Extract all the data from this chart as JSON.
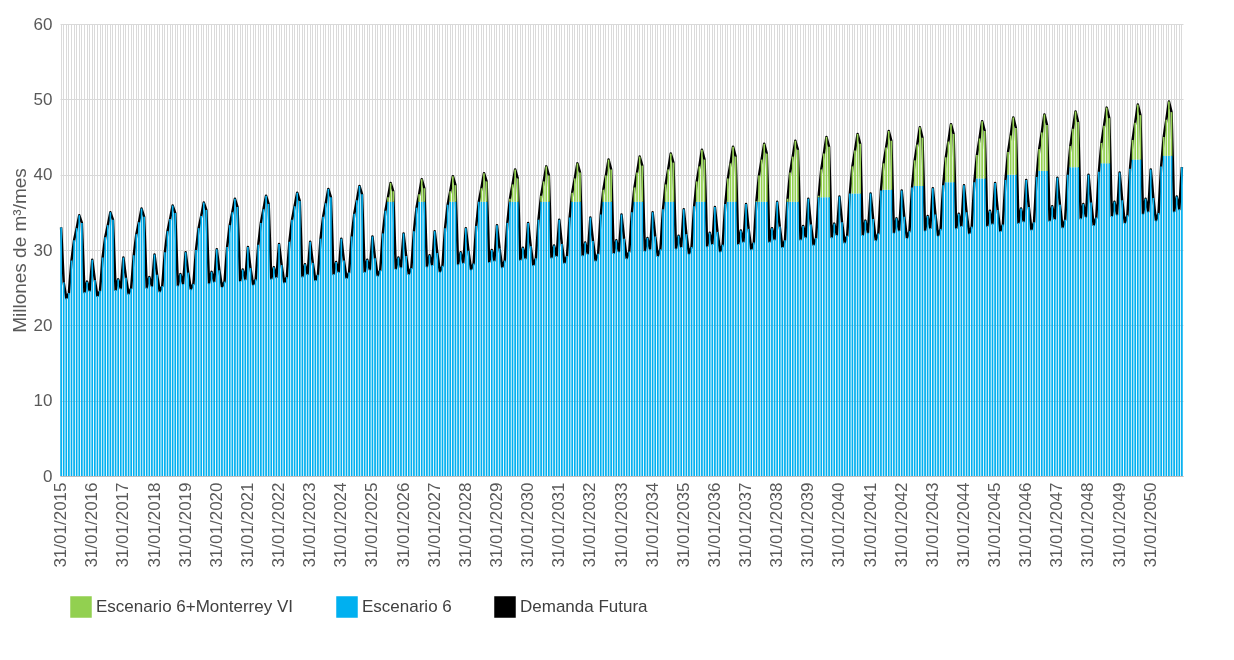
{
  "chart_data": {
    "type": "bar",
    "stacked": true,
    "ylabel": "Millones de m³/mes",
    "ylim": [
      0,
      60
    ],
    "yticks": [
      0,
      10,
      20,
      30,
      40,
      50,
      60
    ],
    "grid": true,
    "legend": "bottom",
    "line_style": "solid",
    "categories": [
      "31/01/2015",
      null,
      null,
      null,
      null,
      null,
      null,
      null,
      null,
      null,
      null,
      null,
      "31/01/2016",
      null,
      null,
      null,
      null,
      null,
      null,
      null,
      null,
      null,
      null,
      null,
      "31/01/2017",
      null,
      null,
      null,
      null,
      null,
      null,
      null,
      null,
      null,
      null,
      null,
      "31/01/2018",
      null,
      null,
      null,
      null,
      null,
      null,
      null,
      null,
      null,
      null,
      null,
      "31/01/2019",
      null,
      null,
      null,
      null,
      null,
      null,
      null,
      null,
      null,
      null,
      null,
      "31/01/2020",
      null,
      null,
      null,
      null,
      null,
      null,
      null,
      null,
      null,
      null,
      null,
      "31/01/2021",
      null,
      null,
      null,
      null,
      null,
      null,
      null,
      null,
      null,
      null,
      null,
      "31/01/2022",
      null,
      null,
      null,
      null,
      null,
      null,
      null,
      null,
      null,
      null,
      null,
      "31/01/2023",
      null,
      null,
      null,
      null,
      null,
      null,
      null,
      null,
      null,
      null,
      null,
      "31/01/2024",
      null,
      null,
      null,
      null,
      null,
      null,
      null,
      null,
      null,
      null,
      null,
      "31/01/2025",
      null,
      null,
      null,
      null,
      null,
      null,
      null,
      null,
      null,
      null,
      null,
      "31/01/2026",
      null,
      null,
      null,
      null,
      null,
      null,
      null,
      null,
      null,
      null,
      null,
      "31/01/2027",
      null,
      null,
      null,
      null,
      null,
      null,
      null,
      null,
      null,
      null,
      null,
      "31/01/2028",
      null,
      null,
      null,
      null,
      null,
      null,
      null,
      null,
      null,
      null,
      null,
      "31/01/2029",
      null,
      null,
      null,
      null,
      null,
      null,
      null,
      null,
      null,
      null,
      null,
      "31/01/2030",
      null,
      null,
      null,
      null,
      null,
      null,
      null,
      null,
      null,
      null,
      null,
      "31/01/2031",
      null,
      null,
      null,
      null,
      null,
      null,
      null,
      null,
      null,
      null,
      null,
      "31/01/2032",
      null,
      null,
      null,
      null,
      null,
      null,
      null,
      null,
      null,
      null,
      null,
      "31/01/2033",
      null,
      null,
      null,
      null,
      null,
      null,
      null,
      null,
      null,
      null,
      null,
      "31/01/2034",
      null,
      null,
      null,
      null,
      null,
      null,
      null,
      null,
      null,
      null,
      null,
      "31/01/2035",
      null,
      null,
      null,
      null,
      null,
      null,
      null,
      null,
      null,
      null,
      null,
      "31/01/2036",
      null,
      null,
      null,
      null,
      null,
      null,
      null,
      null,
      null,
      null,
      null,
      "31/01/2037",
      null,
      null,
      null,
      null,
      null,
      null,
      null,
      null,
      null,
      null,
      null,
      "31/01/2038",
      null,
      null,
      null,
      null,
      null,
      null,
      null,
      null,
      null,
      null,
      null,
      "31/01/2039",
      null,
      null,
      null,
      null,
      null,
      null,
      null,
      null,
      null,
      null,
      null,
      "31/01/2040",
      null,
      null,
      null,
      null,
      null,
      null,
      null,
      null,
      null,
      null,
      null,
      "31/01/2041",
      null,
      null,
      null,
      null,
      null,
      null,
      null,
      null,
      null,
      null,
      null,
      "31/01/2042",
      null,
      null,
      null,
      null,
      null,
      null,
      null,
      null,
      null,
      null,
      null,
      "31/01/2043",
      null,
      null,
      null,
      null,
      null,
      null,
      null,
      null,
      null,
      null,
      null,
      "31/01/2044",
      null,
      null,
      null,
      null,
      null,
      null,
      null,
      null,
      null,
      null,
      null,
      "31/01/2045",
      null,
      null,
      null,
      null,
      null,
      null,
      null,
      null,
      null,
      null,
      null,
      "31/01/2046",
      null,
      null,
      null,
      null,
      null,
      null,
      null,
      null,
      null,
      null,
      null,
      "31/01/2047",
      null,
      null,
      null,
      null,
      null,
      null,
      null,
      null,
      null,
      null,
      null,
      "31/01/2048",
      null,
      null,
      null,
      null,
      null,
      null,
      null,
      null,
      null,
      null,
      null,
      "31/01/2049",
      null,
      null,
      null,
      null,
      null,
      null,
      null,
      null,
      null,
      null,
      null,
      "31/01/2050",
      null,
      null,
      null,
      null,
      null,
      null,
      null,
      null,
      null,
      null,
      null,
      null
    ],
    "series": [
      {
        "name": "Escenario 6",
        "color": "#00b0f0",
        "values": [
          33.0,
          25.7,
          23.6,
          24.3,
          28.6,
          31.3,
          32.9,
          34.6,
          33.6,
          24.4,
          25.8,
          24.6,
          28.7,
          26.0,
          23.9,
          24.6,
          29.0,
          31.7,
          33.3,
          35.0,
          34.0,
          24.7,
          26.1,
          24.9,
          29.0,
          26.3,
          24.2,
          24.9,
          29.3,
          32.1,
          33.7,
          35.5,
          34.4,
          25.0,
          26.4,
          25.2,
          29.4,
          26.7,
          24.5,
          25.2,
          29.7,
          32.5,
          34.1,
          35.9,
          34.9,
          25.3,
          26.8,
          25.5,
          29.7,
          27.0,
          24.8,
          25.5,
          30.0,
          32.9,
          34.5,
          36.3,
          35.3,
          25.6,
          27.1,
          25.8,
          30.1,
          27.3,
          25.1,
          25.8,
          30.4,
          33.3,
          35.0,
          36.8,
          35.7,
          25.9,
          27.4,
          26.1,
          30.4,
          27.6,
          25.4,
          26.1,
          30.7,
          33.6,
          35.4,
          37.2,
          36.1,
          26.2,
          27.7,
          26.4,
          30.8,
          28.0,
          25.7,
          26.4,
          31.1,
          34.0,
          35.8,
          37.6,
          36.5,
          26.5,
          28.1,
          26.8,
          31.1,
          28.3,
          26.0,
          26.7,
          31.5,
          34.4,
          36.2,
          38.1,
          37.0,
          26.8,
          28.4,
          27.1,
          31.5,
          28.6,
          26.3,
          27.0,
          31.8,
          34.8,
          36.6,
          38.5,
          37.4,
          27.1,
          28.7,
          27.4,
          31.8,
          28.9,
          26.6,
          27.3,
          32.2,
          35.2,
          36.4,
          36.4,
          36.4,
          27.5,
          29.0,
          27.7,
          32.2,
          29.2,
          26.8,
          27.6,
          32.5,
          35.6,
          36.4,
          36.4,
          36.4,
          27.8,
          29.3,
          28.0,
          32.5,
          29.6,
          27.1,
          27.9,
          32.9,
          36.0,
          36.4,
          36.4,
          36.4,
          28.1,
          29.7,
          28.3,
          32.9,
          29.9,
          27.4,
          28.2,
          33.2,
          36.4,
          36.4,
          36.4,
          36.4,
          28.4,
          30.0,
          28.6,
          33.3,
          30.2,
          27.7,
          28.6,
          33.6,
          36.4,
          36.4,
          36.4,
          36.4,
          28.7,
          30.3,
          28.9,
          33.6,
          30.5,
          28.0,
          28.9,
          34.0,
          36.4,
          36.4,
          36.4,
          36.4,
          29.0,
          30.6,
          29.2,
          34.0,
          30.8,
          28.3,
          29.2,
          34.3,
          36.4,
          36.4,
          36.4,
          36.4,
          29.3,
          31.0,
          29.5,
          34.3,
          31.2,
          28.6,
          29.5,
          34.7,
          36.4,
          36.4,
          36.4,
          36.4,
          29.6,
          31.3,
          29.8,
          34.7,
          31.5,
          28.9,
          29.8,
          35.0,
          36.4,
          36.4,
          36.4,
          36.4,
          29.9,
          31.6,
          30.1,
          35.0,
          31.8,
          29.2,
          30.1,
          35.4,
          36.4,
          36.4,
          36.4,
          36.4,
          30.2,
          31.9,
          30.4,
          35.4,
          32.1,
          29.5,
          30.4,
          35.8,
          36.4,
          36.4,
          36.4,
          36.4,
          30.5,
          32.3,
          30.8,
          35.7,
          32.4,
          29.8,
          30.7,
          36.1,
          36.4,
          36.4,
          36.4,
          36.4,
          30.8,
          32.6,
          31.1,
          36.1,
          32.8,
          30.1,
          31.0,
          36.4,
          36.4,
          36.4,
          36.4,
          36.4,
          31.1,
          32.9,
          31.4,
          36.4,
          33.1,
          30.4,
          31.3,
          36.4,
          36.4,
          36.4,
          36.4,
          36.4,
          31.4,
          33.2,
          31.7,
          36.8,
          33.4,
          30.7,
          31.6,
          37.0,
          37.0,
          37.0,
          37.0,
          37.0,
          31.7,
          33.5,
          32.0,
          37.1,
          33.7,
          31.0,
          31.9,
          37.5,
          37.5,
          37.5,
          37.5,
          37.5,
          32.0,
          33.9,
          32.3,
          37.5,
          34.1,
          31.3,
          32.2,
          37.9,
          38.0,
          38.0,
          38.0,
          38.0,
          32.3,
          34.2,
          32.6,
          37.9,
          34.4,
          31.6,
          32.5,
          38.3,
          38.5,
          38.5,
          38.5,
          38.5,
          32.6,
          34.5,
          32.9,
          38.2,
          34.7,
          31.9,
          32.8,
          38.6,
          39.0,
          39.0,
          39.0,
          39.0,
          32.9,
          34.8,
          33.2,
          38.6,
          35.0,
          32.2,
          33.1,
          39.0,
          39.5,
          39.5,
          39.5,
          39.5,
          33.2,
          35.2,
          33.5,
          38.9,
          35.3,
          32.5,
          33.4,
          39.3,
          40.0,
          40.0,
          40.0,
          40.0,
          33.6,
          35.5,
          33.8,
          39.3,
          35.7,
          32.7,
          33.7,
          39.7,
          40.5,
          40.5,
          40.5,
          40.5,
          33.9,
          35.8,
          34.1,
          39.6,
          36.0,
          33.0,
          34.0,
          40.0,
          41.0,
          41.0,
          41.0,
          41.0,
          34.2,
          36.1,
          34.4,
          40.0,
          36.3,
          33.3,
          34.3,
          40.4,
          41.5,
          41.5,
          41.5,
          41.5,
          34.5,
          36.4,
          34.7,
          40.3,
          36.6,
          33.6,
          34.6,
          40.8,
          42.0,
          42.0,
          42.0,
          42.0,
          34.8,
          36.8,
          35.1,
          40.7,
          36.9,
          33.9,
          34.9,
          41.1,
          42.5,
          42.5,
          42.5,
          42.5,
          35.1,
          37.1,
          35.4,
          41.0
        ]
      },
      {
        "name": "Escenario 6+Monterrey VI",
        "color": "#92d050",
        "values": [
          0,
          0,
          0,
          0,
          0,
          0,
          0,
          0,
          0,
          0,
          0,
          0,
          0,
          0,
          0,
          0,
          0,
          0,
          0,
          0,
          0,
          0,
          0,
          0,
          0,
          0,
          0,
          0,
          0,
          0,
          0,
          0,
          0,
          0,
          0,
          0,
          0,
          0,
          0,
          0,
          0,
          0,
          0,
          0,
          0,
          0,
          0,
          0,
          0,
          0,
          0,
          0,
          0,
          0,
          0,
          0,
          0,
          0,
          0,
          0,
          0,
          0,
          0,
          0,
          0,
          0,
          0,
          0,
          0,
          0,
          0,
          0,
          0,
          0,
          0,
          0,
          0,
          0,
          0,
          0,
          0,
          0,
          0,
          0,
          0,
          0,
          0,
          0,
          0,
          0,
          0,
          0,
          0,
          0,
          0,
          0,
          0,
          0,
          0,
          0,
          0,
          0,
          0,
          0,
          0,
          0,
          0,
          0,
          0,
          0,
          0,
          0,
          0,
          0,
          0,
          0,
          0,
          0,
          0,
          0,
          0,
          0,
          0,
          0,
          0,
          0,
          0.6,
          2.5,
          1.4,
          0,
          0,
          0,
          0,
          0,
          0,
          0,
          0,
          0,
          1.0,
          3.0,
          1.8,
          0,
          0,
          0,
          0,
          0,
          0,
          0,
          0,
          0,
          1.4,
          3.4,
          2.2,
          0,
          0,
          0,
          0,
          0,
          0,
          0,
          0,
          0,
          1.8,
          3.8,
          2.7,
          0,
          0,
          0,
          0,
          0,
          0,
          0,
          0,
          0.4,
          2.3,
          4.3,
          3.1,
          0,
          0,
          0,
          0,
          0,
          0,
          0,
          0,
          0.8,
          2.7,
          4.7,
          3.5,
          0,
          0,
          0,
          0,
          0,
          0,
          0,
          0,
          1.2,
          3.1,
          5.1,
          3.9,
          0,
          0,
          0,
          0,
          0,
          0,
          0,
          0,
          1.6,
          3.5,
          5.6,
          4.3,
          0,
          0,
          0,
          0,
          0,
          0,
          0,
          0,
          1.9,
          3.9,
          6.0,
          4.8,
          0,
          0,
          0,
          0,
          0,
          0,
          0,
          0,
          2.3,
          4.3,
          6.4,
          5.2,
          0,
          0,
          0,
          0,
          0,
          0,
          0,
          0,
          2.7,
          4.7,
          6.9,
          5.6,
          0,
          0,
          0,
          0,
          0,
          0,
          0,
          0,
          3.1,
          5.1,
          7.3,
          6.0,
          0,
          0,
          0,
          0,
          0,
          0,
          0,
          0.1,
          3.5,
          5.6,
          7.7,
          6.4,
          0,
          0,
          0,
          0,
          0,
          0,
          0,
          0.4,
          3.9,
          6.0,
          8.1,
          6.9,
          0,
          0,
          0,
          0,
          0,
          0,
          0,
          0.2,
          3.7,
          5.8,
          8.0,
          6.7,
          0,
          0,
          0,
          0,
          0,
          0,
          0,
          0,
          3.6,
          5.7,
          7.9,
          6.6,
          0,
          0,
          0,
          0,
          0,
          0,
          0,
          0,
          3.5,
          5.6,
          7.8,
          6.5,
          0,
          0,
          0,
          0,
          0,
          0,
          0,
          0,
          3.4,
          5.5,
          7.8,
          6.4,
          0,
          0,
          0,
          0,
          0,
          0,
          0,
          0,
          3.3,
          5.4,
          7.7,
          6.4,
          0,
          0,
          0,
          0,
          0,
          0,
          0,
          0,
          3.1,
          5.3,
          7.6,
          6.3,
          0,
          0,
          0,
          0,
          0,
          0,
          0,
          0,
          3.0,
          5.2,
          7.6,
          6.2,
          0,
          0,
          0,
          0,
          0,
          0,
          0,
          0,
          2.9,
          5.1,
          7.5,
          6.1,
          0,
          0,
          0,
          0,
          0,
          0,
          0,
          0,
          2.8,
          5.1,
          7.4,
          6.0,
          0,
          0,
          0,
          0,
          0,
          0,
          0,
          0,
          2.7,
          5.0,
          7.4,
          6.0,
          0,
          0,
          0,
          0,
          0,
          0,
          0,
          0,
          2.6,
          4.9,
          7.3,
          5.9,
          0,
          0,
          0,
          0,
          0,
          0,
          0,
          0,
          2.5,
          4.8,
          7.2,
          5.8,
          0,
          0,
          0,
          0
        ]
      },
      {
        "name": "Demanda Futura",
        "color": "#000000",
        "type": "line",
        "values": [
          33.0,
          25.7,
          23.6,
          24.3,
          28.6,
          31.3,
          32.9,
          34.6,
          33.6,
          24.4,
          25.8,
          24.6,
          28.7,
          26.0,
          23.9,
          24.6,
          29.0,
          31.7,
          33.3,
          35.0,
          34.0,
          24.7,
          26.1,
          24.9,
          29.0,
          26.3,
          24.2,
          24.9,
          29.3,
          32.1,
          33.7,
          35.5,
          34.4,
          25.0,
          26.4,
          25.2,
          29.4,
          26.7,
          24.5,
          25.2,
          29.7,
          32.5,
          34.1,
          35.9,
          34.9,
          25.3,
          26.8,
          25.5,
          29.7,
          27.0,
          24.8,
          25.5,
          30.0,
          32.9,
          34.5,
          36.3,
          35.3,
          25.6,
          27.1,
          25.8,
          30.1,
          27.3,
          25.1,
          25.8,
          30.4,
          33.3,
          35.0,
          36.8,
          35.7,
          25.9,
          27.4,
          26.1,
          30.4,
          27.6,
          25.4,
          26.1,
          30.7,
          33.6,
          35.4,
          37.2,
          36.1,
          26.2,
          27.7,
          26.4,
          30.8,
          28.0,
          25.7,
          26.4,
          31.1,
          34.0,
          35.8,
          37.6,
          36.5,
          26.5,
          28.1,
          26.8,
          31.1,
          28.3,
          26.0,
          26.7,
          31.5,
          34.4,
          36.2,
          38.1,
          37.0,
          26.8,
          28.4,
          27.1,
          31.5,
          28.6,
          26.3,
          27.0,
          31.8,
          34.8,
          36.6,
          38.5,
          37.4,
          27.1,
          28.7,
          27.4,
          31.8,
          28.9,
          26.6,
          27.3,
          32.2,
          35.2,
          37.0,
          38.9,
          37.8,
          27.5,
          29.0,
          27.7,
          32.2,
          29.2,
          26.8,
          27.6,
          32.5,
          35.6,
          37.4,
          39.4,
          38.2,
          27.8,
          29.3,
          28.0,
          32.5,
          29.6,
          27.1,
          27.9,
          32.9,
          36.0,
          37.8,
          39.8,
          38.6,
          28.1,
          29.7,
          28.3,
          32.9,
          29.9,
          27.4,
          28.2,
          33.2,
          36.4,
          38.2,
          40.2,
          39.1,
          28.4,
          30.0,
          28.6,
          33.3,
          30.2,
          27.7,
          28.6,
          33.6,
          36.8,
          38.7,
          40.7,
          39.5,
          28.7,
          30.3,
          28.9,
          33.6,
          30.5,
          28.0,
          28.9,
          34.0,
          37.2,
          39.1,
          41.1,
          39.9,
          29.0,
          30.6,
          29.2,
          34.0,
          30.8,
          28.3,
          29.2,
          34.3,
          37.6,
          39.5,
          41.5,
          40.3,
          29.3,
          31.0,
          29.5,
          34.3,
          31.2,
          28.6,
          29.5,
          34.7,
          38.0,
          39.9,
          42.0,
          40.7,
          29.6,
          31.3,
          29.8,
          34.7,
          31.5,
          28.9,
          29.8,
          35.0,
          38.3,
          40.3,
          42.4,
          41.2,
          29.9,
          31.6,
          30.1,
          35.0,
          31.8,
          29.2,
          30.1,
          35.4,
          38.7,
          40.7,
          42.8,
          41.6,
          30.2,
          31.9,
          30.4,
          35.4,
          32.1,
          29.5,
          30.4,
          35.8,
          39.1,
          41.1,
          43.3,
          42.0,
          30.5,
          32.3,
          30.8,
          35.7,
          32.4,
          29.8,
          30.7,
          36.1,
          39.5,
          41.5,
          43.7,
          42.4,
          30.8,
          32.6,
          31.1,
          36.1,
          32.8,
          30.1,
          31.0,
          36.5,
          39.9,
          42.0,
          44.1,
          42.8,
          31.1,
          32.9,
          31.4,
          36.4,
          33.1,
          30.4,
          31.3,
          36.8,
          40.3,
          42.4,
          44.5,
          43.3,
          31.4,
          33.2,
          31.7,
          36.8,
          33.4,
          30.7,
          31.6,
          37.2,
          40.7,
          42.8,
          45.0,
          43.7,
          31.7,
          33.5,
          32.0,
          37.1,
          33.7,
          31.0,
          31.9,
          37.5,
          41.1,
          43.2,
          45.4,
          44.1,
          32.0,
          33.9,
          32.3,
          37.5,
          34.1,
          31.3,
          32.2,
          37.9,
          41.5,
          43.6,
          45.8,
          44.5,
          32.3,
          34.2,
          32.6,
          37.9,
          34.4,
          31.6,
          32.5,
          38.3,
          41.9,
          44.0,
          46.3,
          44.9,
          32.6,
          34.5,
          32.9,
          38.2,
          34.7,
          31.9,
          32.8,
          38.6,
          42.3,
          44.4,
          46.7,
          45.4,
          32.9,
          34.8,
          33.2,
          38.6,
          35.0,
          32.2,
          33.1,
          39.0,
          42.6,
          44.8,
          47.1,
          45.8,
          33.2,
          35.2,
          33.5,
          38.9,
          35.3,
          32.5,
          33.4,
          39.3,
          43.0,
          45.2,
          47.6,
          46.2,
          33.6,
          35.5,
          33.8,
          39.3,
          35.7,
          32.7,
          33.7,
          39.7,
          43.4,
          45.6,
          48.0,
          46.6,
          33.9,
          35.8,
          34.1,
          39.6,
          36.0,
          33.0,
          34.0,
          40.0,
          43.8,
          46.1,
          48.4,
          47.0,
          34.2,
          36.1,
          34.4,
          40.0,
          36.3,
          33.3,
          34.3,
          40.4,
          44.2,
          46.5,
          48.9,
          47.5,
          34.5,
          36.4,
          34.7,
          40.3,
          36.6,
          33.6,
          34.6,
          40.8,
          44.6,
          46.9,
          49.3,
          47.9,
          34.8,
          36.8,
          35.1,
          40.7,
          36.9,
          33.9,
          34.9,
          41.1,
          45.0,
          47.3,
          49.7,
          48.3,
          35.1,
          37.1,
          35.4,
          41.0
        ]
      }
    ]
  }
}
